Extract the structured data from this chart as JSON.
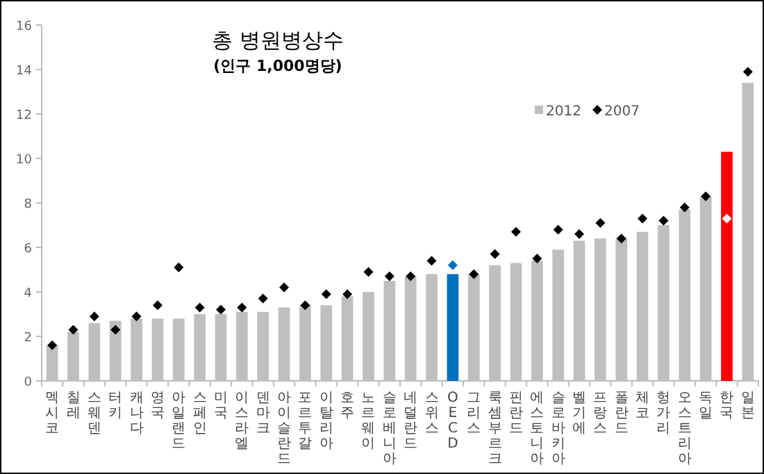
{
  "chart_data": {
    "type": "bar",
    "title": "총 병원병상수",
    "subtitle": "(인구 1,000명당)",
    "categories": [
      "멕시코",
      "칠레",
      "스웨덴",
      "터키",
      "캐나다",
      "영국",
      "아일랜드",
      "스페인",
      "미국",
      "이스라엘",
      "덴마크",
      "아이슬란드",
      "포르투갈",
      "이탈리아",
      "호주",
      "노르웨이",
      "슬로베니아",
      "네덜란드",
      "스위스",
      "OECD",
      "그리스",
      "룩셈부르크",
      "핀란드",
      "에스토니아",
      "슬로바키아",
      "벨기에",
      "프랑스",
      "폴란드",
      "체코",
      "헝가리",
      "오스트리아",
      "독일",
      "한국",
      "일본"
    ],
    "series": [
      {
        "name": "2012",
        "color": "#bfbfbf",
        "colors": [
          "#bfbfbf",
          "#bfbfbf",
          "#bfbfbf",
          "#bfbfbf",
          "#bfbfbf",
          "#bfbfbf",
          "#bfbfbf",
          "#bfbfbf",
          "#bfbfbf",
          "#bfbfbf",
          "#bfbfbf",
          "#bfbfbf",
          "#bfbfbf",
          "#bfbfbf",
          "#bfbfbf",
          "#bfbfbf",
          "#bfbfbf",
          "#bfbfbf",
          "#bfbfbf",
          "#0070c0",
          "#bfbfbf",
          "#bfbfbf",
          "#bfbfbf",
          "#bfbfbf",
          "#bfbfbf",
          "#bfbfbf",
          "#bfbfbf",
          "#bfbfbf",
          "#bfbfbf",
          "#bfbfbf",
          "#bfbfbf",
          "#bfbfbf",
          "#ff0000",
          "#bfbfbf"
        ],
        "values": [
          1.6,
          2.2,
          2.6,
          2.7,
          2.8,
          2.8,
          2.8,
          3.0,
          3.0,
          3.1,
          3.1,
          3.3,
          3.4,
          3.4,
          3.8,
          4.0,
          4.5,
          4.7,
          4.8,
          4.8,
          4.8,
          5.2,
          5.3,
          5.4,
          5.9,
          6.3,
          6.4,
          6.4,
          6.7,
          7.0,
          7.7,
          8.3,
          10.3,
          13.4
        ]
      },
      {
        "name": "2007",
        "type": "scatter",
        "marker": "diamond",
        "color": "#000000",
        "colors": [
          "#000000",
          "#000000",
          "#000000",
          "#000000",
          "#000000",
          "#000000",
          "#000000",
          "#000000",
          "#000000",
          "#000000",
          "#000000",
          "#000000",
          "#000000",
          "#000000",
          "#000000",
          "#000000",
          "#000000",
          "#000000",
          "#000000",
          "#0070c0",
          "#000000",
          "#000000",
          "#000000",
          "#000000",
          "#000000",
          "#000000",
          "#000000",
          "#000000",
          "#000000",
          "#000000",
          "#000000",
          "#000000",
          "#ffffff",
          "#000000"
        ],
        "values": [
          1.6,
          2.3,
          2.9,
          2.3,
          2.9,
          3.4,
          5.1,
          3.3,
          3.2,
          3.3,
          3.7,
          4.2,
          3.4,
          3.9,
          3.9,
          4.9,
          4.7,
          4.7,
          5.4,
          5.2,
          4.8,
          5.7,
          6.7,
          5.5,
          6.8,
          6.6,
          7.1,
          6.4,
          7.3,
          7.2,
          7.8,
          8.3,
          7.3,
          13.9
        ]
      }
    ],
    "ylim": [
      0,
      16
    ],
    "yticks": [
      0,
      2,
      4,
      6,
      8,
      10,
      12,
      14,
      16
    ],
    "grid": false,
    "legend": "top right"
  }
}
